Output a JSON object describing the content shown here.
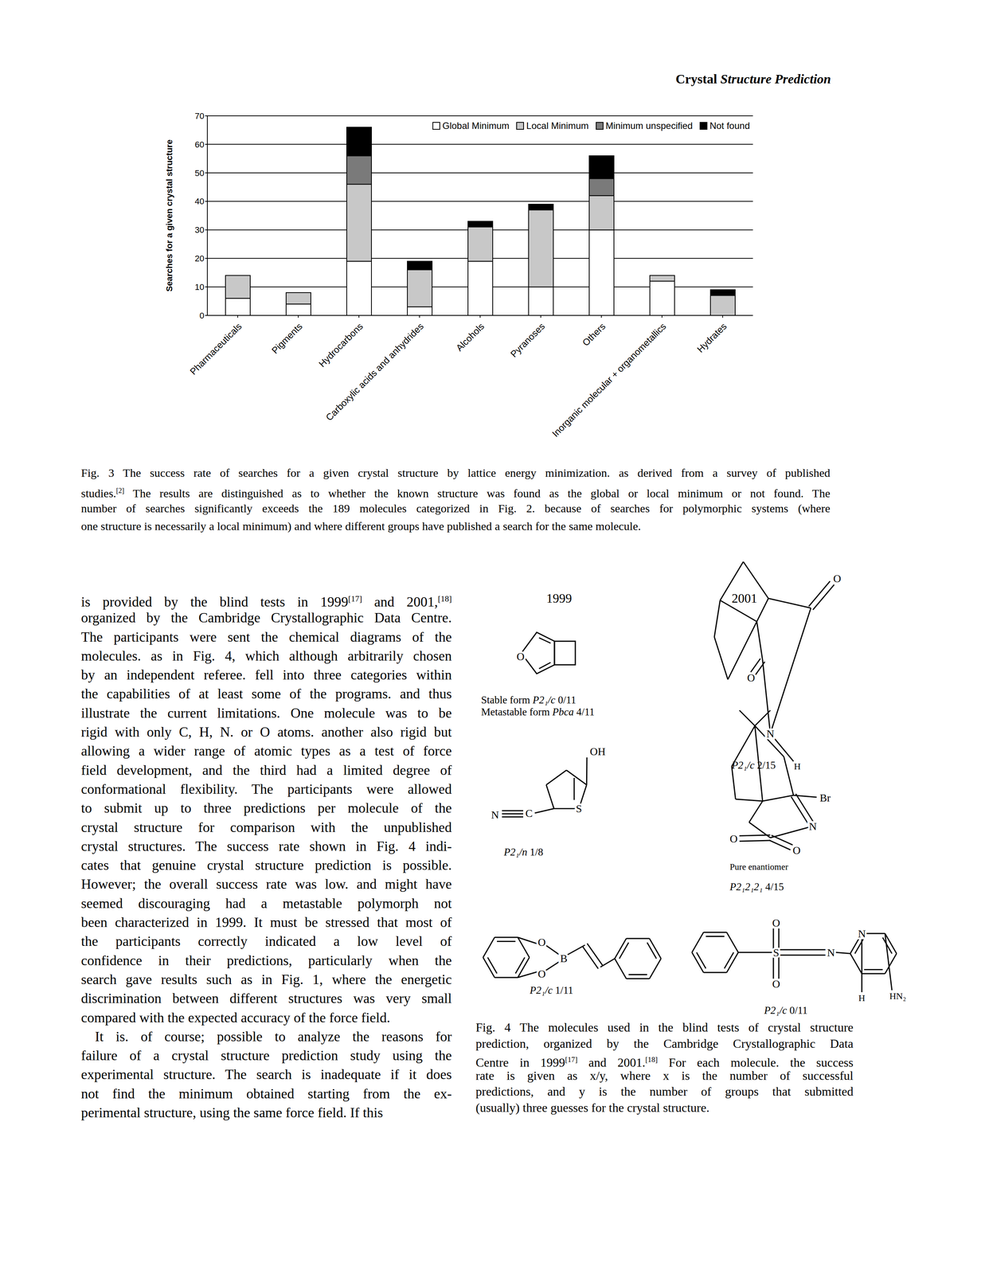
{
  "header": {
    "running_title": "Crystal Structure Prediction"
  },
  "chart_data": {
    "type": "bar",
    "stacked": true,
    "y_label": "Searches for a given crystal structure",
    "categories": [
      "Pharmaceuticals",
      "Pigments",
      "Hydrocarbons",
      "Carboxylic acids and anhydrides",
      "Alcohols",
      "Pyranoses",
      "Others",
      "Inorganic molecular + organometallics",
      "Hydrates"
    ],
    "series": [
      {
        "name": "Global Minimum",
        "color": "#ffffff",
        "values": [
          6,
          4,
          19,
          3,
          19,
          10,
          30,
          12,
          0
        ]
      },
      {
        "name": "Local Minimum",
        "color": "#c8c8c8",
        "values": [
          8,
          4,
          27,
          13,
          12,
          27,
          12,
          2,
          7
        ]
      },
      {
        "name": "Minimum unspecified",
        "color": "#7a7a7a",
        "values": [
          0,
          0,
          10,
          0,
          0,
          0,
          6,
          0,
          0
        ]
      },
      {
        "name": "Not found",
        "color": "#000000",
        "values": [
          0,
          0,
          10,
          3,
          2,
          2,
          8,
          0,
          2
        ]
      }
    ],
    "ylim": [
      0,
      70
    ],
    "yticks": [
      0,
      10,
      20,
      30,
      40,
      50,
      60,
      70
    ],
    "grid": true,
    "legend": "top-right"
  },
  "figure3_caption": {
    "label": "Fig. 3",
    "lines": [
      "The success rate of searches for a given crystal structure by lattice energy minimization. as derived from a survey of published",
      "studies.[2] The results are distinguished as to whether the known structure was found as the global or local minimum or not found. The",
      "number of searches significantly exceeds the 189 molecules categorized in Fig. 2. because of searches for polymorphic systems (where",
      "one structure is necessarily a local minimum) and where different groups have published a search for the same molecule."
    ]
  },
  "body_text": {
    "paragraphs": [
      {
        "indent": false,
        "lines": [
          "is provided by the blind tests in 1999[17] and 2001,[18]",
          "organized by the Cambridge Crystallographic Data Centre.",
          "The participants were sent the chemical diagrams of the",
          "molecules. as in Fig. 4, which although arbitrarily chosen",
          "by an independent referee. fell into three categories within",
          "the capabilities of at least some of the programs. and thus",
          "illustrate the current limitations. One molecule was to be",
          "rigid with only C, H, N. or O atoms. another also rigid but",
          "allowing a wider range of atomic types as a test of force",
          "field development, and the third had a limited degree of",
          "conformational flexibility. The participants were allowed",
          "to submit up to three predictions per molecule of the",
          "crystal structure for comparison with the unpublished",
          "crystal structures. The success rate shown in Fig. 4 indi-",
          "cates that genuine crystal structure prediction is possible.",
          "However; the overall success rate was low. and might have",
          "seemed discouraging had a metastable polymorph not",
          "been characterized in 1999. It must be stressed that most of",
          "the participants correctly indicated a low level of",
          "confidence in their predictions, particularly when the",
          "search gave results such as in Fig. 1, where the energetic",
          "discrimination between different structures was very small",
          "compared with the expected accuracy of the force field."
        ]
      },
      {
        "indent": true,
        "lines": [
          "It is. of course; possible to analyze the reasons for",
          "failure of a crystal structure prediction study using the",
          "experimental structure. The search is inadequate if it does",
          "not find the minimum obtained starting from the ex-",
          "perimental structure, using the same force field. If this"
        ]
      }
    ]
  },
  "figure4": {
    "years": [
      "1999",
      "2001"
    ],
    "molecules": [
      {
        "atoms": [
          "O"
        ],
        "forms": [
          {
            "form": "Stable form",
            "space_group": "P2₁/c",
            "success": "0/11"
          },
          {
            "form": "Metastable form",
            "space_group": "Pbca",
            "success": "4/11"
          }
        ]
      },
      {
        "atoms": [
          "OH",
          "N",
          "C",
          "S"
        ],
        "forms": [
          {
            "space_group": "P2₁/n",
            "success": "1/8"
          }
        ]
      },
      {
        "atoms": [
          "O",
          "O",
          "B"
        ],
        "forms": [
          {
            "space_group": "P2₁/c",
            "success": "1/11"
          }
        ]
      },
      {
        "atoms": [
          "O",
          "O",
          "N",
          "H"
        ],
        "forms": [
          {
            "space_group": "P2₁/c",
            "success": "2/15"
          }
        ]
      },
      {
        "atoms": [
          "Br",
          "N",
          "O",
          "O"
        ],
        "note": "Pure enantiomer",
        "forms": [
          {
            "space_group": "P2₁2₁2₁",
            "success": "4/15"
          }
        ]
      },
      {
        "atoms": [
          "O",
          "S",
          "O",
          "N",
          "N",
          "H",
          "HN₂"
        ],
        "forms": [
          {
            "space_group": "P2₁/c",
            "success": "0/11"
          }
        ]
      }
    ],
    "caption": {
      "label": "Fig. 4",
      "lines": [
        "The molecules used in the blind tests of crystal structure",
        "prediction, organized by the Cambridge Crystallographic Data",
        "Centre in 1999[17] and 2001.[18] For each molecule. the success",
        "rate is given as x/y, where x is the number of successful",
        "predictions, and y is the number of groups that submitted",
        "(usually) three guesses for the crystal structure."
      ]
    }
  }
}
